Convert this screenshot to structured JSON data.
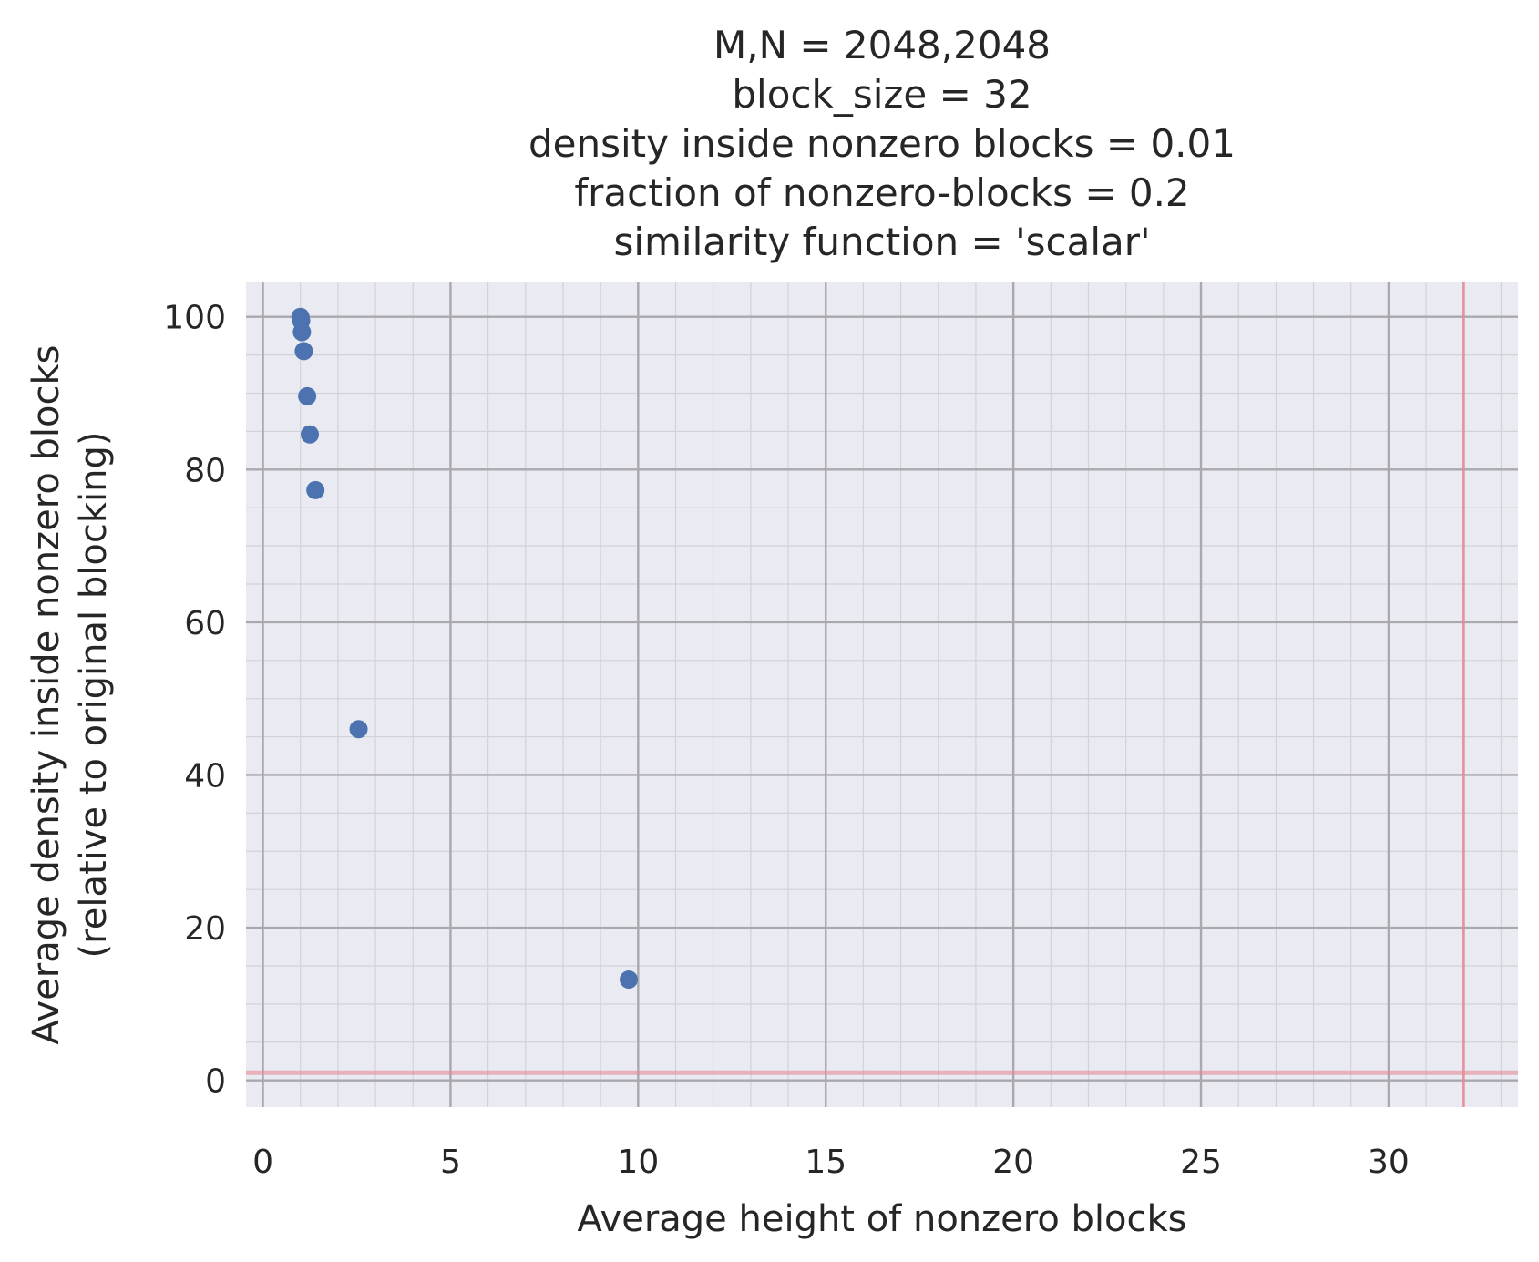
{
  "chart_data": {
    "type": "scatter",
    "title_lines": [
      "M,N = 2048,2048",
      "block_size = 32",
      "density inside nonzero blocks = 0.01",
      "fraction of nonzero-blocks = 0.2",
      "similarity function = 'scalar'"
    ],
    "xlabel": "Average height of nonzero blocks",
    "ylabel_lines": [
      "Average density inside nonzero blocks",
      "(relative to original blocking)"
    ],
    "xlim": [
      -0.45,
      33.45
    ],
    "ylim": [
      -3.5,
      104.5
    ],
    "x_ticks": [
      0,
      5,
      10,
      15,
      20,
      25,
      30
    ],
    "y_ticks": [
      0,
      20,
      40,
      60,
      80,
      100
    ],
    "x_minor_step": 1,
    "y_minor_step": 5,
    "grid": true,
    "points": [
      {
        "x": 1.0,
        "y": 100.0
      },
      {
        "x": 1.02,
        "y": 99.5
      },
      {
        "x": 1.04,
        "y": 98.0
      },
      {
        "x": 1.09,
        "y": 95.5
      },
      {
        "x": 1.18,
        "y": 89.6
      },
      {
        "x": 1.25,
        "y": 84.6
      },
      {
        "x": 1.4,
        "y": 77.3
      },
      {
        "x": 2.55,
        "y": 46.0
      },
      {
        "x": 9.75,
        "y": 13.2
      }
    ],
    "reference_lines": {
      "vertical_x": 32,
      "horizontal_y": 1
    },
    "colors": {
      "background": "#eaeaf2",
      "point": "#4c72b0",
      "grid_major": "#a8a8ad",
      "grid_minor": "#d2d2d9",
      "reference": "#e68a94",
      "text": "#262626"
    }
  }
}
